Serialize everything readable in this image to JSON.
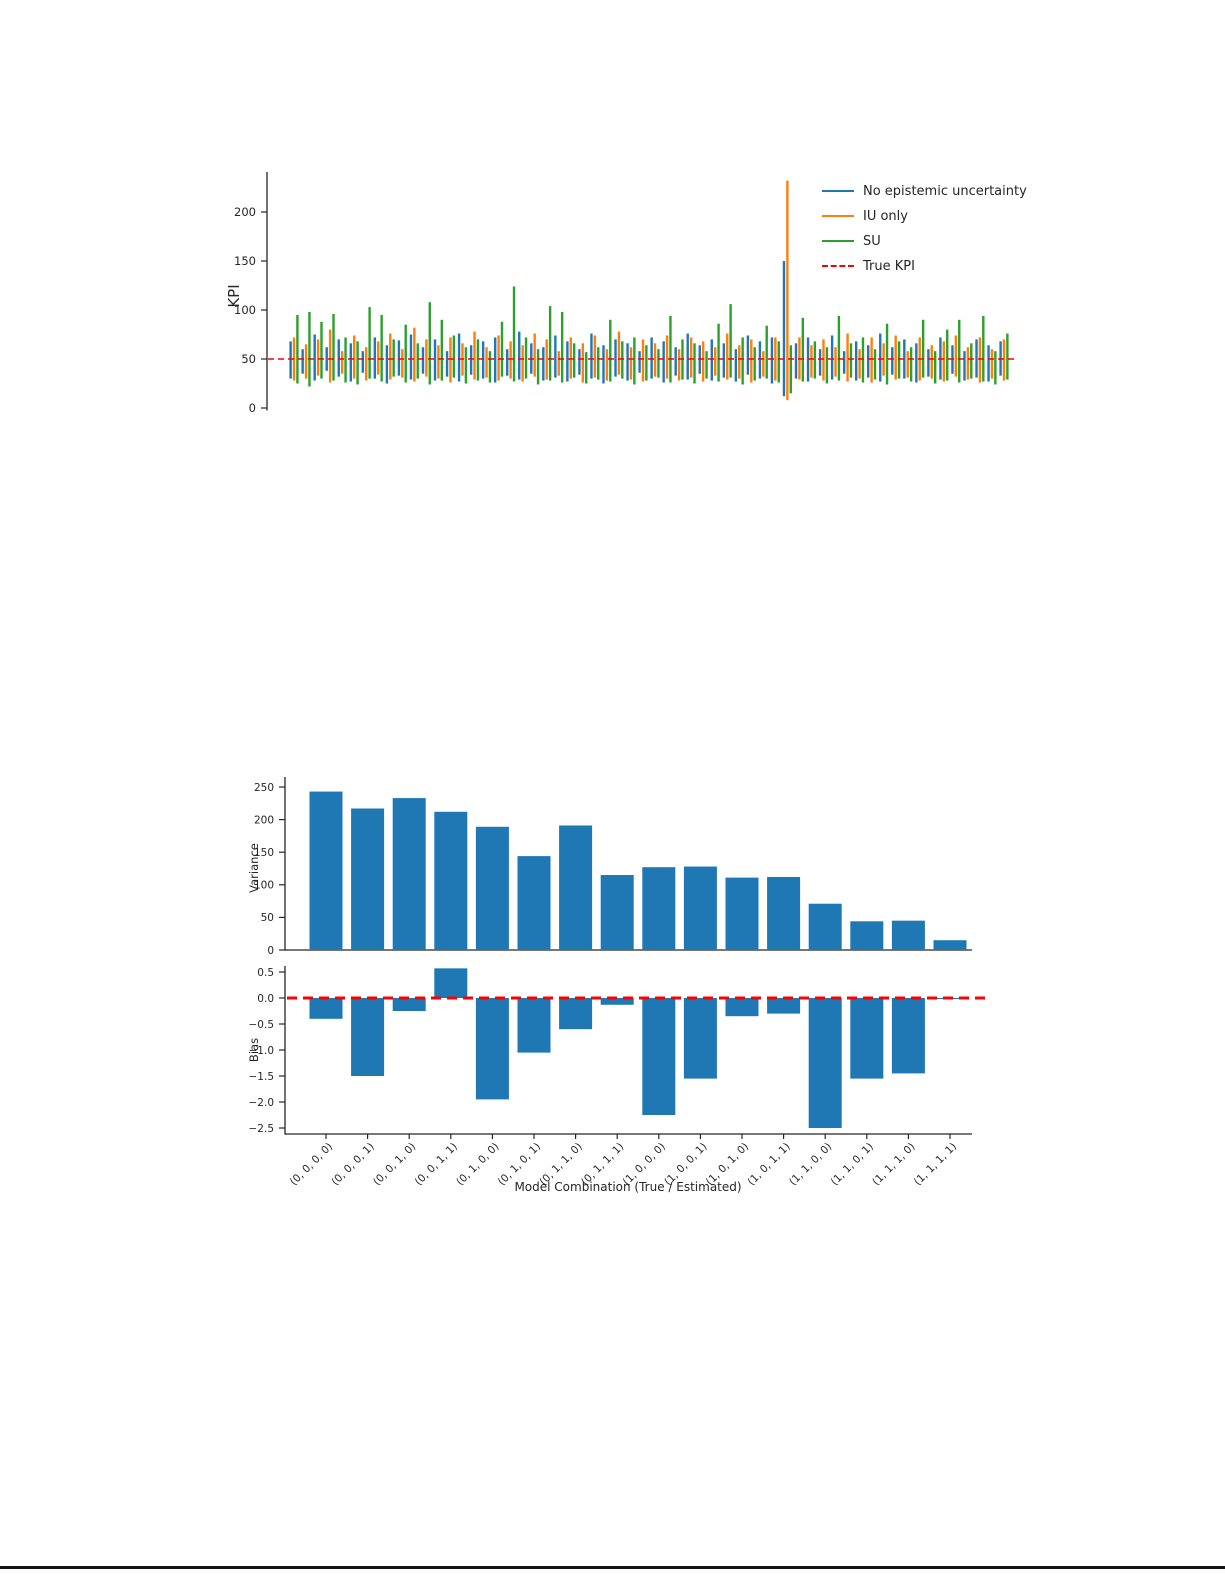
{
  "page": {
    "background": "#ffffff",
    "divider_color": "#141414"
  },
  "chart_data": [
    {
      "type": "bar",
      "subtype": "grouped-range-bars",
      "ylabel": "KPI",
      "yticks": [
        0,
        50,
        100,
        150,
        200
      ],
      "ylim": [
        0,
        240
      ],
      "reference_line": {
        "label": "True KPI",
        "value": 50,
        "color": "#ff0000",
        "style": "dashed"
      },
      "legend": [
        {
          "label": "No epistemic uncertainty",
          "color": "#1f77b4",
          "style": "solid"
        },
        {
          "label": "IU only",
          "color": "#ff7f0e",
          "style": "solid"
        },
        {
          "label": "SU",
          "color": "#2ca02c",
          "style": "solid"
        },
        {
          "label": "True KPI",
          "color": "#ff0000",
          "style": "dashed"
        }
      ],
      "series_colors": [
        "#1f77b4",
        "#ff7f0e",
        "#2ca02c"
      ],
      "groups": [
        [
          30,
          68,
          28,
          72,
          25,
          95
        ],
        [
          35,
          60,
          30,
          65,
          22,
          98
        ],
        [
          28,
          75,
          33,
          70,
          30,
          88
        ],
        [
          38,
          62,
          26,
          80,
          28,
          96
        ],
        [
          32,
          70,
          35,
          58,
          26,
          72
        ],
        [
          27,
          66,
          30,
          74,
          24,
          68
        ],
        [
          36,
          58,
          28,
          62,
          30,
          103
        ],
        [
          30,
          72,
          34,
          68,
          27,
          95
        ],
        [
          25,
          64,
          29,
          76,
          32,
          70
        ],
        [
          33,
          69,
          31,
          60,
          26,
          85
        ],
        [
          29,
          75,
          27,
          82,
          30,
          66
        ],
        [
          35,
          62,
          32,
          70,
          24,
          108
        ],
        [
          28,
          70,
          30,
          64,
          28,
          90
        ],
        [
          32,
          58,
          26,
          72,
          31,
          74
        ],
        [
          27,
          76,
          33,
          66,
          25,
          62
        ],
        [
          34,
          64,
          29,
          78,
          28,
          70
        ],
        [
          30,
          68,
          31,
          62,
          26,
          58
        ],
        [
          26,
          72,
          28,
          74,
          32,
          88
        ],
        [
          33,
          60,
          30,
          68,
          27,
          124
        ],
        [
          29,
          78,
          27,
          64,
          30,
          72
        ],
        [
          35,
          66,
          32,
          76,
          24,
          60
        ],
        [
          28,
          62,
          29,
          70,
          28,
          104
        ],
        [
          31,
          74,
          33,
          58,
          26,
          98
        ],
        [
          27,
          68,
          30,
          72,
          31,
          66
        ],
        [
          34,
          60,
          26,
          66,
          25,
          57
        ],
        [
          30,
          76,
          31,
          74,
          29,
          62
        ],
        [
          25,
          64,
          28,
          60,
          27,
          90
        ],
        [
          32,
          70,
          34,
          78,
          30,
          68
        ],
        [
          28,
          66,
          29,
          62,
          24,
          72
        ],
        [
          36,
          58,
          27,
          70,
          28,
          64
        ],
        [
          30,
          72,
          32,
          66,
          31,
          60
        ],
        [
          26,
          68,
          30,
          74,
          26,
          94
        ],
        [
          33,
          62,
          28,
          60,
          29,
          70
        ],
        [
          29,
          76,
          31,
          72,
          25,
          66
        ],
        [
          35,
          64,
          27,
          68,
          30,
          58
        ],
        [
          28,
          70,
          33,
          62,
          27,
          86
        ],
        [
          31,
          66,
          29,
          76,
          31,
          106
        ],
        [
          27,
          60,
          30,
          64,
          24,
          72
        ],
        [
          34,
          74,
          26,
          70,
          28,
          62
        ],
        [
          30,
          68,
          32,
          58,
          30,
          84
        ],
        [
          25,
          72,
          28,
          72,
          26,
          68
        ],
        [
          12,
          150,
          8,
          232,
          15,
          64
        ],
        [
          30,
          66,
          29,
          72,
          27,
          92
        ],
        [
          27,
          72,
          31,
          64,
          30,
          68
        ],
        [
          33,
          60,
          28,
          70,
          25,
          62
        ],
        [
          29,
          74,
          32,
          62,
          28,
          94
        ],
        [
          35,
          58,
          27,
          76,
          31,
          66
        ],
        [
          28,
          68,
          30,
          60,
          26,
          72
        ],
        [
          31,
          64,
          26,
          72,
          29,
          60
        ],
        [
          27,
          76,
          33,
          66,
          24,
          86
        ],
        [
          34,
          62,
          29,
          74,
          30,
          68
        ],
        [
          30,
          70,
          31,
          58,
          27,
          62
        ],
        [
          26,
          66,
          28,
          72,
          31,
          90
        ],
        [
          32,
          60,
          30,
          64,
          25,
          58
        ],
        [
          29,
          72,
          27,
          68,
          28,
          80
        ],
        [
          35,
          64,
          32,
          74,
          26,
          90
        ],
        [
          28,
          58,
          29,
          62,
          30,
          66
        ],
        [
          31,
          70,
          26,
          72,
          27,
          94
        ],
        [
          27,
          64,
          30,
          60,
          24,
          58
        ],
        [
          33,
          68,
          28,
          70,
          29,
          76
        ]
      ]
    },
    {
      "type": "bar",
      "ylabel": "Variance",
      "yticks": [
        0,
        50,
        100,
        150,
        200,
        250
      ],
      "ylim": [
        0,
        260
      ],
      "bar_color": "#1f77b4",
      "categories": [
        "(0, 0, 0, 0)",
        "(0, 0, 0, 1)",
        "(0, 0, 1, 0)",
        "(0, 0, 1, 1)",
        "(0, 1, 0, 0)",
        "(0, 1, 0, 1)",
        "(0, 1, 1, 0)",
        "(0, 1, 1, 1)",
        "(1, 0, 0, 0)",
        "(1, 0, 0, 1)",
        "(1, 0, 1, 0)",
        "(1, 0, 1, 1)",
        "(1, 1, 0, 0)",
        "(1, 1, 0, 1)",
        "(1, 1, 1, 0)",
        "(1, 1, 1, 1)"
      ],
      "values": [
        243,
        217,
        233,
        212,
        189,
        144,
        191,
        115,
        127,
        128,
        111,
        112,
        71,
        44,
        45,
        15
      ]
    },
    {
      "type": "bar",
      "ylabel": "Bias",
      "xlabel": "Model Combination (True / Estimated)",
      "ytick_values": [
        0.5,
        0.0,
        -0.5,
        -1.0,
        -1.5,
        -2.0,
        -2.5
      ],
      "ytick_labels": [
        "0.5",
        "0.0",
        "−0.5",
        "−1.0",
        "−1.5",
        "−2.0",
        "−2.5"
      ],
      "ylim": [
        -2.6,
        0.7
      ],
      "bar_color": "#1f77b4",
      "zero_line": {
        "value": 0,
        "color": "#ff0000",
        "style": "dashed"
      },
      "categories": [
        "(0, 0, 0, 0)",
        "(0, 0, 0, 1)",
        "(0, 0, 1, 0)",
        "(0, 0, 1, 1)",
        "(0, 1, 0, 0)",
        "(0, 1, 0, 1)",
        "(0, 1, 1, 0)",
        "(0, 1, 1, 1)",
        "(1, 0, 0, 0)",
        "(1, 0, 0, 1)",
        "(1, 0, 1, 0)",
        "(1, 0, 1, 1)",
        "(1, 1, 0, 0)",
        "(1, 1, 0, 1)",
        "(1, 1, 1, 0)",
        "(1, 1, 1, 1)"
      ],
      "values": [
        -0.4,
        -1.5,
        -0.25,
        0.57,
        -1.95,
        -1.05,
        -0.6,
        -0.13,
        -2.25,
        -1.55,
        -0.35,
        -0.3,
        -2.5,
        -1.55,
        -1.45,
        -0.02
      ]
    }
  ]
}
